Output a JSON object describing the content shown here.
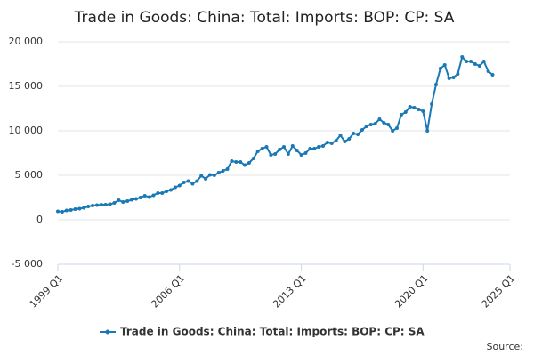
{
  "chart_data": {
    "type": "line",
    "title": "Trade in Goods: China: Total: Imports: BOP: CP: SA",
    "source": "Source:",
    "categories": [
      "1999 Q1",
      null,
      null,
      null,
      null,
      null,
      null,
      null,
      null,
      null,
      null,
      null,
      null,
      null,
      null,
      null,
      null,
      null,
      null,
      null,
      null,
      null,
      null,
      null,
      null,
      null,
      null,
      null,
      "2006 Q1",
      null,
      null,
      null,
      null,
      null,
      null,
      null,
      null,
      null,
      null,
      null,
      null,
      null,
      null,
      null,
      null,
      null,
      null,
      null,
      null,
      null,
      null,
      null,
      null,
      null,
      null,
      null,
      "2013 Q1",
      null,
      null,
      null,
      null,
      null,
      null,
      null,
      null,
      null,
      null,
      null,
      null,
      null,
      null,
      null,
      null,
      null,
      null,
      null,
      null,
      null,
      null,
      null,
      null,
      null,
      null,
      null,
      "2020 Q1",
      null,
      null,
      null,
      null,
      null,
      null,
      null,
      null,
      null,
      null,
      null,
      null,
      null,
      null,
      null,
      null,
      null,
      null,
      null,
      "2025 Q1"
    ],
    "series": [
      {
        "name": "Trade in Goods: China: Total: Imports: BOP: CP: SA",
        "color": "#1a79b5",
        "values": [
          950,
          900,
          1050,
          1100,
          1200,
          1250,
          1350,
          1500,
          1600,
          1650,
          1700,
          1700,
          1750,
          1900,
          2200,
          2000,
          2100,
          2250,
          2350,
          2500,
          2700,
          2550,
          2750,
          3000,
          3000,
          3200,
          3350,
          3650,
          3850,
          4200,
          4350,
          4050,
          4350,
          4950,
          4600,
          5050,
          5000,
          5300,
          5500,
          5700,
          6600,
          6500,
          6500,
          6150,
          6400,
          6900,
          7700,
          8000,
          8200,
          7300,
          7400,
          7900,
          8200,
          7400,
          8300,
          7800,
          7300,
          7500,
          8000,
          8000,
          8200,
          8300,
          8700,
          8600,
          8900,
          9500,
          8800,
          9100,
          9700,
          9600,
          10100,
          10500,
          10700,
          10800,
          11300,
          10900,
          10700,
          10000,
          10300,
          11800,
          12100,
          12700,
          12600,
          12400,
          12200,
          10000,
          13000,
          15200,
          17000,
          17400,
          15900,
          16000,
          16400,
          18300,
          17800,
          17800,
          17500,
          17300,
          17800,
          16700,
          16300,
          null,
          null,
          null,
          null
        ]
      }
    ],
    "ylim": [
      -5000,
      20000
    ],
    "yticks": [
      {
        "value": -5000,
        "label": "-5 000"
      },
      0,
      {
        "value": 5000,
        "label": "5 000"
      },
      {
        "value": 10000,
        "label": "10 000"
      },
      {
        "value": 15000,
        "label": "15 000"
      },
      {
        "value": 20000,
        "label": "20 000"
      }
    ],
    "grid": true
  }
}
